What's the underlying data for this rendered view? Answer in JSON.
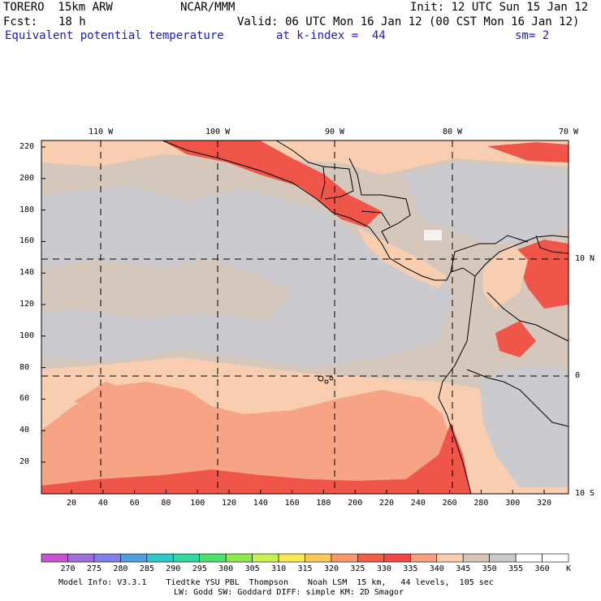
{
  "header": {
    "model": "TORERO  15km ARW",
    "center": "NCAR/MMM",
    "init": "Init: 12 UTC Sun 15 Jan 12",
    "fcst_label": "Fcst:",
    "fcst_value": "18 h",
    "valid": "Valid: 06 UTC Mon 16 Jan 12 (00 CST Mon 16 Jan 12)",
    "field": "Equivalent potential temperature",
    "level": "at k-index =  44",
    "smoothing": "sm= 2"
  },
  "map": {
    "longitude_labels": [
      "110 W",
      "100 W",
      "90 W",
      "80 W",
      "70 W"
    ],
    "latitude_labels": [
      "10 N",
      "0",
      "10 S"
    ],
    "y_ticks": [
      "220",
      "200",
      "180",
      "160",
      "140",
      "120",
      "100",
      "80",
      "60",
      "40",
      "20"
    ],
    "x_ticks": [
      "20",
      "40",
      "60",
      "80",
      "100",
      "120",
      "140",
      "160",
      "180",
      "200",
      "220",
      "240",
      "260",
      "280",
      "300",
      "320"
    ]
  },
  "colorbar": {
    "unit": "K",
    "levels": [
      "270",
      "275",
      "280",
      "285",
      "290",
      "295",
      "300",
      "305",
      "310",
      "315",
      "320",
      "325",
      "330",
      "335",
      "340",
      "345",
      "350",
      "355",
      "360"
    ],
    "colors": [
      "#c855d0",
      "#a070d8",
      "#8080e8",
      "#50a0e0",
      "#30c8c8",
      "#30d8a0",
      "#50e070",
      "#90e850",
      "#c8f050",
      "#f8e858",
      "#f8c858",
      "#f89868",
      "#f06048",
      "#f04848",
      "#f8a080",
      "#f8cdb0",
      "#d8c4b6",
      "#c8c8cc",
      "#ffffff",
      "#ffffff"
    ]
  },
  "footer": {
    "line1": "Model Info: V3.3.1    Tiedtke YSU PBL  Thompson    Noah LSM  15 km,   44 levels,  105 sec",
    "line2": "LW: Godd SW: Goddard DIFF: simple KM: 2D Smagor"
  },
  "fields": {
    "base": "#d6c7bd",
    "band_warm": "#f8cdb0",
    "band_mid": "#f7a486",
    "band_hot": "#ef5649",
    "gray": "#cbcbcf",
    "white_patch": "#f2f2f2"
  }
}
